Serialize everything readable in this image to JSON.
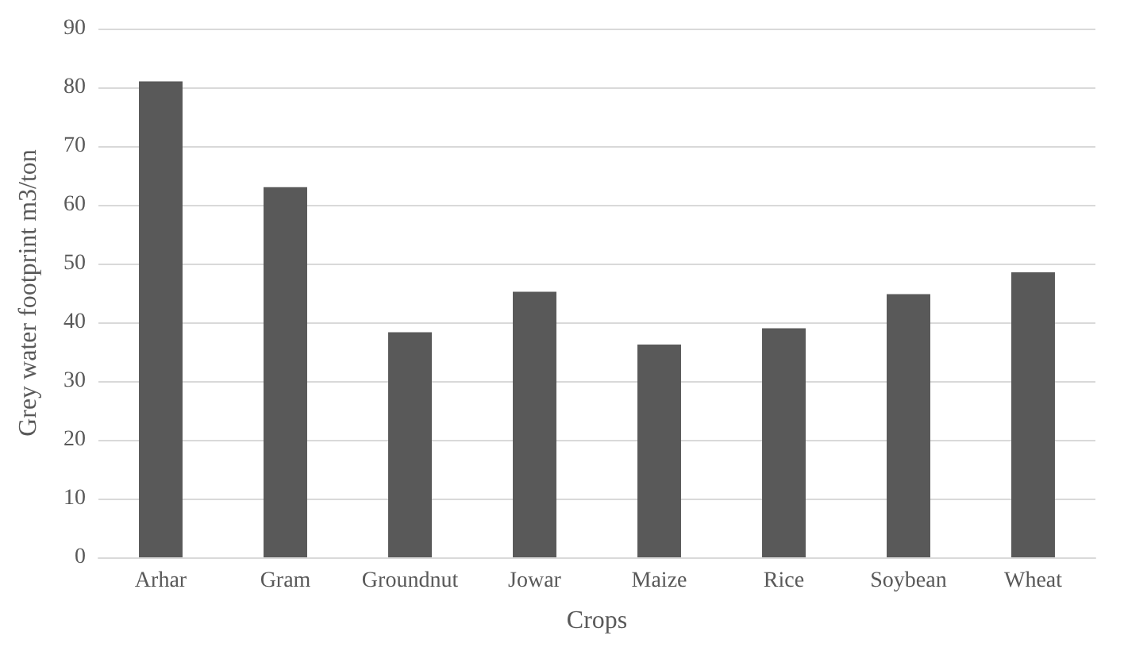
{
  "chart_data": {
    "type": "bar",
    "xlabel": "Crops",
    "ylabel": "Grey water footprint m3/ton",
    "categories": [
      "Arhar",
      "Gram",
      "Groundnut",
      "Jowar",
      "Maize",
      "Rice",
      "Soybean",
      "Wheat"
    ],
    "values": [
      81,
      63,
      38.3,
      45.2,
      36.2,
      39,
      44.8,
      48.5
    ],
    "color": "#595959",
    "ylim": [
      0,
      90
    ],
    "yticks": [
      0,
      10,
      20,
      30,
      40,
      50,
      60,
      70,
      80,
      90
    ],
    "grid": "y"
  }
}
